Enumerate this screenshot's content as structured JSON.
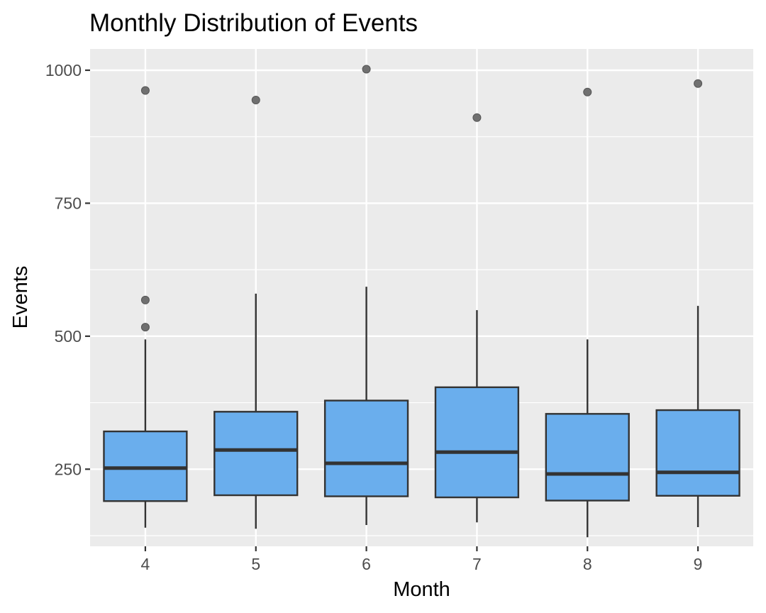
{
  "chart_data": {
    "type": "boxplot",
    "title": "Monthly Distribution of Events",
    "xlabel": "Month",
    "ylabel": "Events",
    "ylim": [
      105,
      1040
    ],
    "y_ticks": [
      250,
      500,
      750,
      1000
    ],
    "y_tick_labels": [
      "250",
      "500",
      "750",
      "1000"
    ],
    "grid": true,
    "legend": "none",
    "colors": {
      "panel_background": "#ebebeb",
      "grid_line": "#ffffff",
      "box_fill": "#6aaeed",
      "box_stroke": "#333333",
      "outlier": "#707070",
      "tick_label": "#4d4d4d",
      "tick_mark": "#333333"
    },
    "categories": [
      "4",
      "5",
      "6",
      "7",
      "8",
      "9"
    ],
    "boxes": [
      {
        "category": "4",
        "whisker_low": 140,
        "q1": 190,
        "median": 252,
        "q3": 321,
        "whisker_high": 494,
        "outliers": [
          517,
          568,
          962
        ]
      },
      {
        "category": "5",
        "whisker_low": 138,
        "q1": 201,
        "median": 286,
        "q3": 358,
        "whisker_high": 580,
        "outliers": [
          944
        ]
      },
      {
        "category": "6",
        "whisker_low": 145,
        "q1": 199,
        "median": 261,
        "q3": 379,
        "whisker_high": 593,
        "outliers": [
          1002
        ]
      },
      {
        "category": "7",
        "whisker_low": 150,
        "q1": 197,
        "median": 282,
        "q3": 404,
        "whisker_high": 549,
        "outliers": [
          911
        ]
      },
      {
        "category": "8",
        "whisker_low": 122,
        "q1": 191,
        "median": 241,
        "q3": 354,
        "whisker_high": 494,
        "outliers": [
          959
        ]
      },
      {
        "category": "9",
        "whisker_low": 141,
        "q1": 200,
        "median": 244,
        "q3": 361,
        "whisker_high": 557,
        "outliers": [
          975
        ]
      }
    ]
  }
}
